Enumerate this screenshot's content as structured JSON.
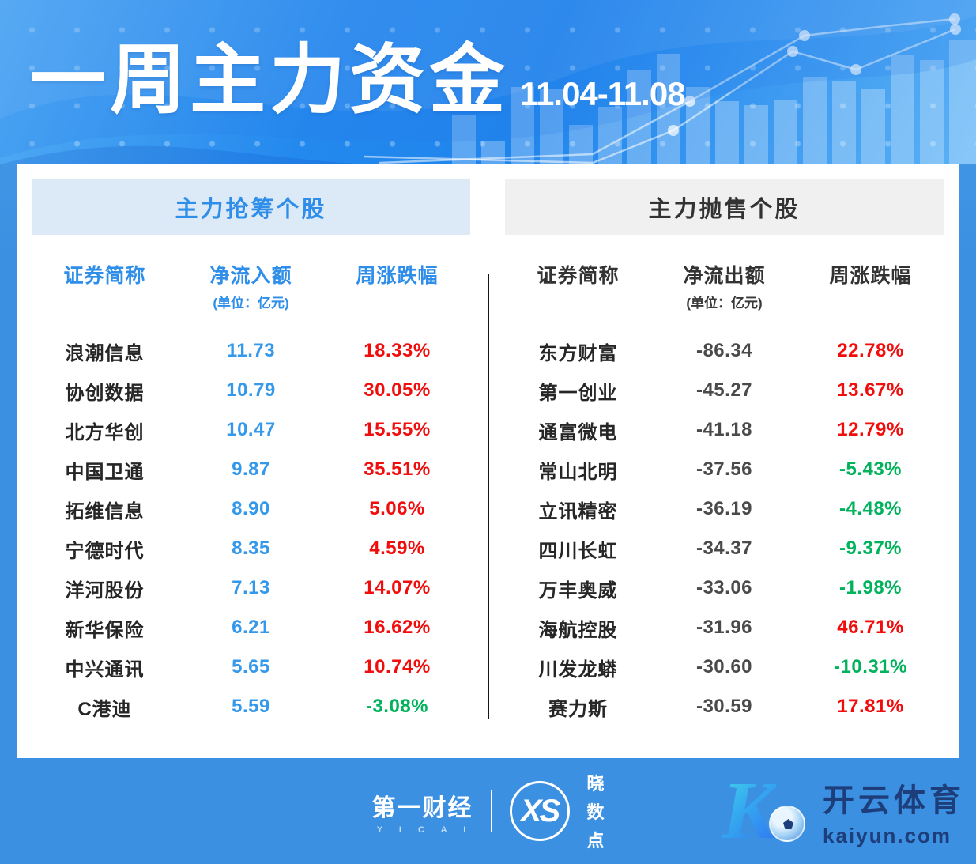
{
  "header": {
    "title": "一周主力资金",
    "date_range": "11.04-11.08"
  },
  "left_table": {
    "banner": "主力抢筹个股",
    "columns": {
      "name": "证券简称",
      "amount": "净流入额",
      "unit": "(单位：亿元)",
      "change": "周涨跌幅"
    },
    "rows": [
      {
        "name": "浪潮信息",
        "amount": "11.73",
        "change": "18.33%"
      },
      {
        "name": "协创数据",
        "amount": "10.79",
        "change": "30.05%"
      },
      {
        "name": "北方华创",
        "amount": "10.47",
        "change": "15.55%"
      },
      {
        "name": "中国卫通",
        "amount": "9.87",
        "change": "35.51%"
      },
      {
        "name": "拓维信息",
        "amount": "8.90",
        "change": "5.06%"
      },
      {
        "name": "宁德时代",
        "amount": "8.35",
        "change": "4.59%"
      },
      {
        "name": "洋河股份",
        "amount": "7.13",
        "change": "14.07%"
      },
      {
        "name": "新华保险",
        "amount": "6.21",
        "change": "16.62%"
      },
      {
        "name": "中兴通讯",
        "amount": "5.65",
        "change": "10.74%"
      },
      {
        "name": "C港迪",
        "amount": "5.59",
        "change": "-3.08%"
      }
    ]
  },
  "right_table": {
    "banner": "主力抛售个股",
    "columns": {
      "name": "证券简称",
      "amount": "净流出额",
      "unit": "(单位：亿元)",
      "change": "周涨跌幅"
    },
    "rows": [
      {
        "name": "东方财富",
        "amount": "-86.34",
        "change": "22.78%"
      },
      {
        "name": "第一创业",
        "amount": "-45.27",
        "change": "13.67%"
      },
      {
        "name": "通富微电",
        "amount": "-41.18",
        "change": "12.79%"
      },
      {
        "name": "常山北明",
        "amount": "-37.56",
        "change": "-5.43%"
      },
      {
        "name": "立讯精密",
        "amount": "-36.19",
        "change": "-4.48%"
      },
      {
        "name": "四川长虹",
        "amount": "-34.37",
        "change": "-9.37%"
      },
      {
        "name": "万丰奥威",
        "amount": "-33.06",
        "change": "-1.98%"
      },
      {
        "name": "海航控股",
        "amount": "-31.96",
        "change": "46.71%"
      },
      {
        "name": "川发龙蟒",
        "amount": "-30.60",
        "change": "-10.31%"
      },
      {
        "name": "赛力斯",
        "amount": "-30.59",
        "change": "17.81%"
      }
    ]
  },
  "footer": {
    "yicai_name": "第一财经",
    "yicai_latin": "Y I C A I",
    "xs_monogram": "XS",
    "xs_label_chars": [
      "晓",
      "数",
      "点"
    ],
    "kaiyun_k": "K",
    "kaiyun_name": "开云体育",
    "kaiyun_domain": "kaiyun.com"
  },
  "colors": {
    "header_blue": "#2489ee",
    "footer_blue": "#3b90e1",
    "left_banner_bg": "#dce9f6",
    "left_accent_blue": "#2e8ee9",
    "right_banner_bg": "#f0f0f0",
    "value_blue": "#3498eb",
    "rise_red": "#f20d0d",
    "fall_green": "#00b25c",
    "kaiyun_navy": "#1d3e7b"
  },
  "chart_data": [
    {
      "type": "table",
      "title": "主力抢筹个股",
      "columns": [
        "证券简称",
        "净流入额(亿元)",
        "周涨跌幅"
      ],
      "rows": [
        [
          "浪潮信息",
          11.73,
          "18.33%"
        ],
        [
          "协创数据",
          10.79,
          "30.05%"
        ],
        [
          "北方华创",
          10.47,
          "15.55%"
        ],
        [
          "中国卫通",
          9.87,
          "35.51%"
        ],
        [
          "拓维信息",
          8.9,
          "5.06%"
        ],
        [
          "宁德时代",
          8.35,
          "4.59%"
        ],
        [
          "洋河股份",
          7.13,
          "14.07%"
        ],
        [
          "新华保险",
          6.21,
          "16.62%"
        ],
        [
          "中兴通讯",
          5.65,
          "10.74%"
        ],
        [
          "C港迪",
          5.59,
          "-3.08%"
        ]
      ]
    },
    {
      "type": "table",
      "title": "主力抛售个股",
      "columns": [
        "证券简称",
        "净流出额(亿元)",
        "周涨跌幅"
      ],
      "rows": [
        [
          "东方财富",
          -86.34,
          "22.78%"
        ],
        [
          "第一创业",
          -45.27,
          "13.67%"
        ],
        [
          "通富微电",
          -41.18,
          "12.79%"
        ],
        [
          "常山北明",
          -37.56,
          "-5.43%"
        ],
        [
          "立讯精密",
          -36.19,
          "-4.48%"
        ],
        [
          "四川长虹",
          -34.37,
          "-9.37%"
        ],
        [
          "万丰奥威",
          -33.06,
          "-1.98%"
        ],
        [
          "海航控股",
          -31.96,
          "46.71%"
        ],
        [
          "川发龙蟒",
          -30.6,
          "-10.31%"
        ],
        [
          "赛力斯",
          -30.59,
          "17.81%"
        ]
      ]
    }
  ]
}
